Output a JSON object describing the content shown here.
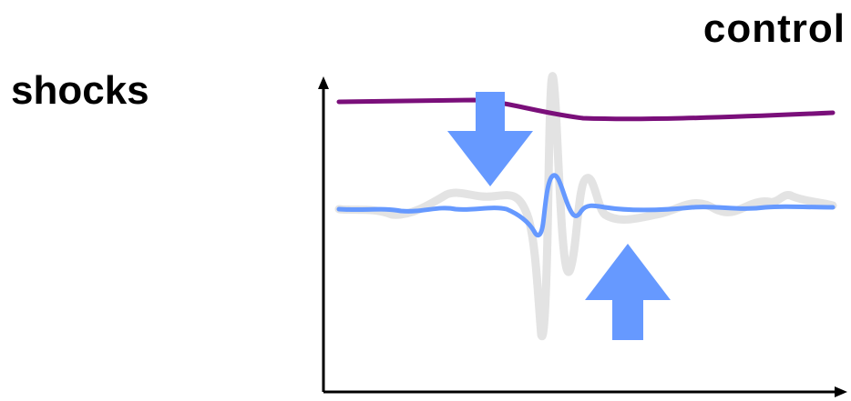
{
  "labels": {
    "shocks": "shocks",
    "control": "control"
  },
  "colors": {
    "axis": "#000000",
    "top_curve": "#7a0f7a",
    "controlled_curve": "#6699ff",
    "uncontrolled_curve": "#e3e3e3",
    "arrows": "#6699ff"
  },
  "elements": {
    "down_arrow": "down-arrow-icon",
    "up_arrow": "up-arrow-icon"
  }
}
